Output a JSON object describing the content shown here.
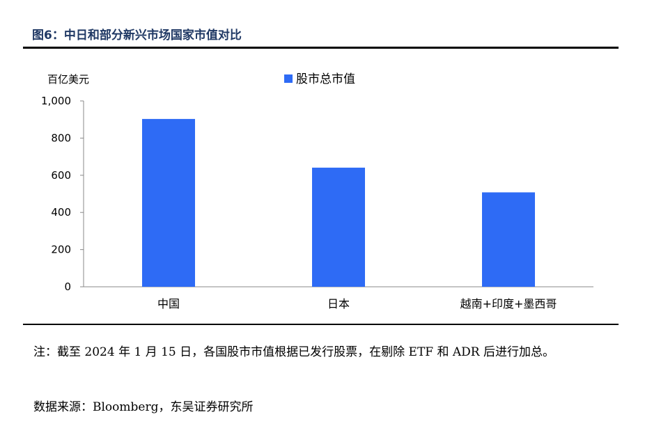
{
  "figure": {
    "title": "图6：中日和部分新兴市场国家市值对比",
    "note": "注：截至 2024 年 1 月 15 日，各国股市市值根据已发行股票，在剔除 ETF 和 ADR 后进行加总。",
    "source": "数据来源：Bloomberg，东吴证券研究所"
  },
  "chart_data": {
    "type": "bar",
    "unit_label": "百亿美元",
    "categories": [
      "中国",
      "日本",
      "越南+印度+墨西哥"
    ],
    "series": [
      {
        "name": "股市总市值",
        "values": [
          903,
          641,
          508
        ],
        "color": "#2e6bf5"
      }
    ],
    "ylim": [
      0,
      1000
    ],
    "yticks": [
      0,
      200,
      400,
      600,
      800,
      1000
    ],
    "ytick_labels": [
      "0",
      "200",
      "400",
      "600",
      "800",
      "1,000"
    ],
    "legend_position": "top-center",
    "grid": false
  }
}
